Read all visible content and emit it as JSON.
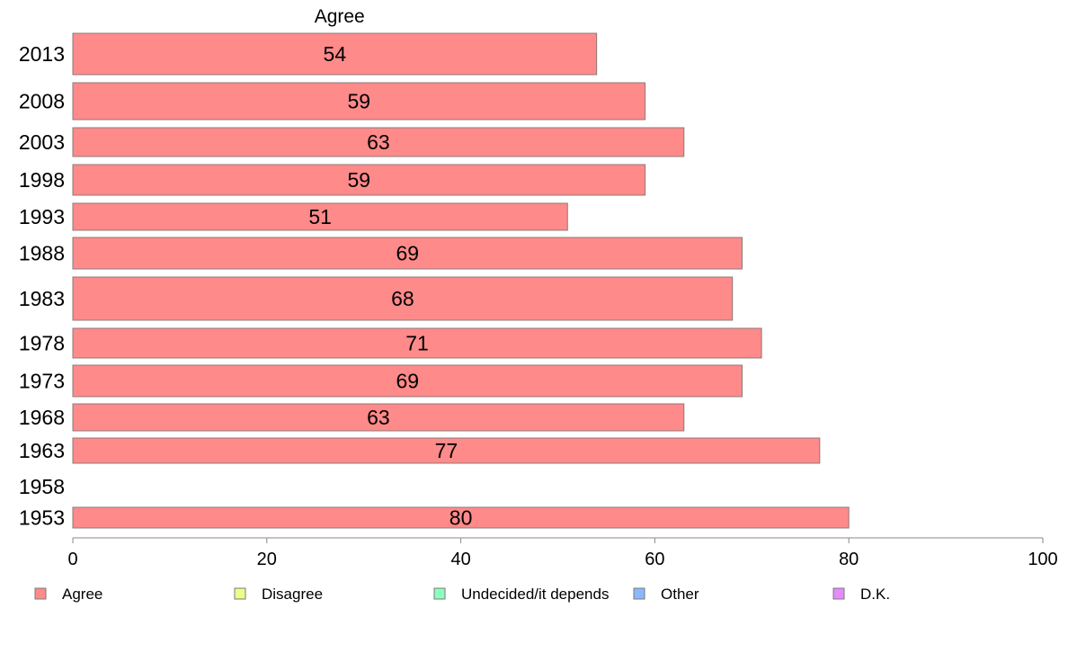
{
  "chart_data": {
    "type": "bar",
    "orientation": "horizontal",
    "panel_title": "Agree",
    "categories": [
      "2013",
      "2008",
      "2003",
      "1998",
      "1993",
      "1988",
      "1983",
      "1978",
      "1973",
      "1968",
      "1963",
      "1958",
      "1953"
    ],
    "series": [
      {
        "name": "Agree",
        "color": "#ff8a8a",
        "values": [
          54,
          59,
          63,
          59,
          51,
          69,
          68,
          71,
          69,
          63,
          77,
          null,
          80
        ],
        "labels": [
          "54",
          "59",
          "63",
          "59",
          "51",
          "69",
          "68",
          "71",
          "69",
          "63",
          "77",
          "",
          "80"
        ]
      }
    ],
    "xlim": [
      0,
      100
    ],
    "xticks": [
      0,
      20,
      40,
      60,
      80,
      100
    ],
    "xtick_labels": [
      "0",
      "20",
      "40",
      "60",
      "80",
      "100"
    ],
    "grid": false,
    "legend": {
      "placement": "bottom",
      "entries": [
        {
          "label": "Agree",
          "color": "#ff8a8a"
        },
        {
          "label": "Disagree",
          "color": "#eaff8a"
        },
        {
          "label": "Undecided/it depends",
          "color": "#8affbf"
        },
        {
          "label": "Other",
          "color": "#8ab8ff"
        },
        {
          "label": "D.K.",
          "color": "#e58aff"
        }
      ]
    }
  }
}
